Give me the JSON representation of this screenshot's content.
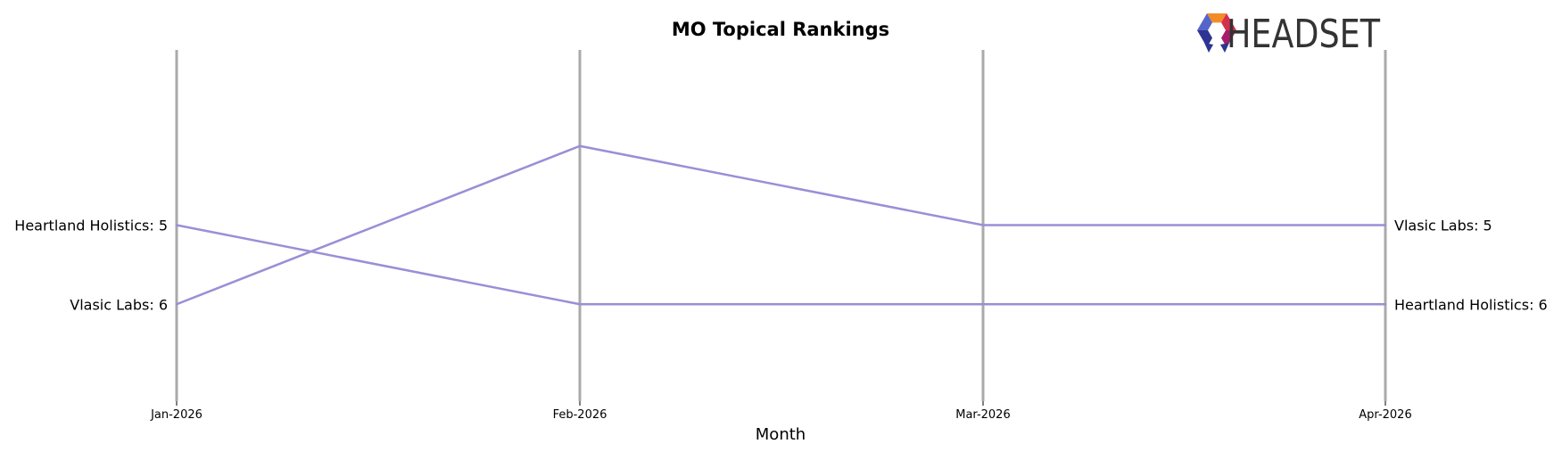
{
  "chart_data": {
    "type": "line",
    "title": "MO Topical Rankings",
    "xlabel": "Month",
    "ylabel": "",
    "categories": [
      "Jan-2026",
      "Feb-2026",
      "Mar-2026",
      "Apr-2026"
    ],
    "y_axis": {
      "inverted": true,
      "range": [
        3,
        7
      ]
    },
    "grid": "vertical lines at each month",
    "series": [
      {
        "name": "Heartland Holistics",
        "values": [
          5,
          6,
          6,
          6
        ]
      },
      {
        "name": "Vlasic Labs",
        "values": [
          6,
          4,
          5,
          5
        ]
      }
    ],
    "start_labels": [
      "Heartland Holistics: 5",
      "Vlasic Labs: 6"
    ],
    "end_labels": [
      "Vlasic Labs: 5",
      "Heartland Holistics: 6"
    ],
    "line_color": "#9a8fd6",
    "gridline_color": "#aaaaaa"
  },
  "logo": {
    "text": "HEADSET",
    "colors": [
      "#f28c28",
      "#d62e4d",
      "#a61c6b",
      "#c22d9c",
      "#2d3494",
      "#5566c9"
    ]
  }
}
